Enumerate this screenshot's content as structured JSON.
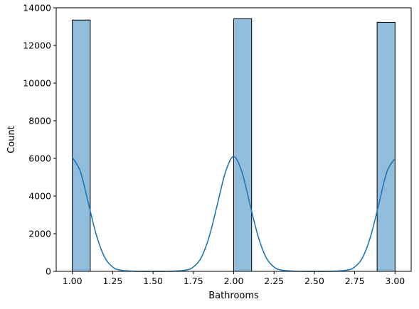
{
  "chart_data": {
    "type": "bar",
    "subtype": "histogram-with-kde",
    "title": "",
    "xlabel": "Bathrooms",
    "ylabel": "Count",
    "xlim": [
      0.9,
      3.1
    ],
    "ylim": [
      0,
      14000
    ],
    "x_ticks": [
      1.0,
      1.25,
      1.5,
      1.75,
      2.0,
      2.25,
      2.5,
      2.75,
      3.0
    ],
    "x_tick_labels": [
      "1.00",
      "1.25",
      "1.50",
      "1.75",
      "2.00",
      "2.25",
      "2.50",
      "2.75",
      "3.00"
    ],
    "y_ticks": [
      0,
      2000,
      4000,
      6000,
      8000,
      10000,
      12000,
      14000
    ],
    "y_tick_labels": [
      "0",
      "2000",
      "4000",
      "6000",
      "8000",
      "10000",
      "12000",
      "14000"
    ],
    "grid": false,
    "legend": "none",
    "bars": [
      {
        "x_start": 1.0,
        "x_end": 1.1111,
        "count": 13350
      },
      {
        "x_start": 1.8889,
        "x_end": 2.0,
        "count": 0
      },
      {
        "x_start": 2.0,
        "x_end": 2.1111,
        "count": 13420
      },
      {
        "x_start": 2.8889,
        "x_end": 3.0,
        "count": 13230
      }
    ],
    "kde": {
      "x": [
        1.0,
        1.05,
        1.1,
        1.15,
        1.2,
        1.25,
        1.3,
        1.4,
        1.5,
        1.6,
        1.7,
        1.75,
        1.8,
        1.85,
        1.9,
        1.95,
        2.0,
        2.05,
        2.1,
        2.15,
        2.2,
        2.25,
        2.3,
        2.4,
        2.5,
        2.6,
        2.7,
        2.75,
        2.8,
        2.85,
        2.9,
        2.95,
        3.0
      ],
      "y": [
        6050,
        5300,
        3600,
        1900,
        750,
        230,
        60,
        5,
        0,
        5,
        60,
        230,
        750,
        1900,
        3600,
        5300,
        6100,
        5300,
        3600,
        1900,
        750,
        230,
        60,
        5,
        0,
        5,
        60,
        230,
        750,
        1900,
        3600,
        5300,
        6000
      ]
    },
    "colors": {
      "bar_fill": "#91bcdb",
      "bar_edge": "#000000",
      "kde_line": "#1f77b4",
      "axes": "#000000"
    }
  }
}
